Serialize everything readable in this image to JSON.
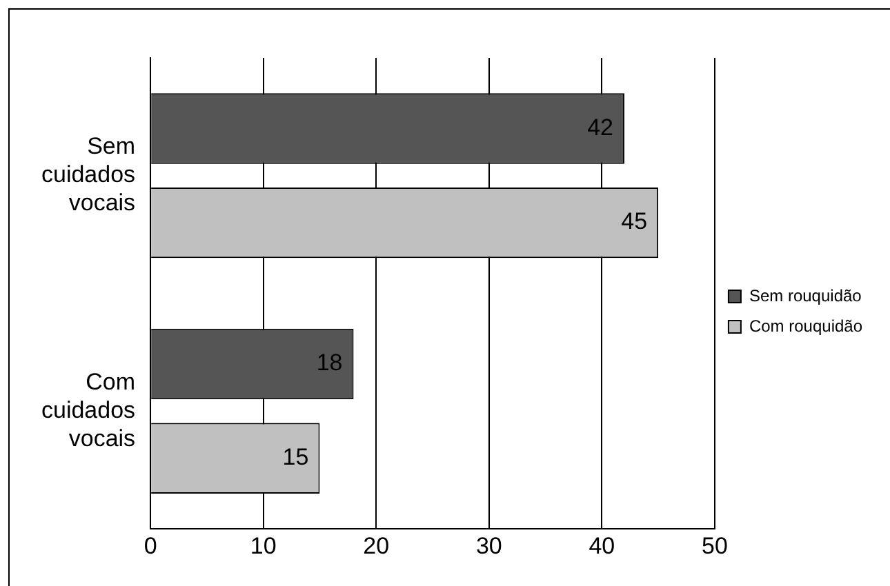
{
  "chart_data": {
    "type": "bar",
    "orientation": "horizontal",
    "categories": [
      "Sem cuidados vocais",
      "Com cuidados vocais"
    ],
    "series": [
      {
        "name": "Sem rouquidão",
        "color": "#555555",
        "values": [
          42,
          18
        ]
      },
      {
        "name": "Com rouquidão",
        "color": "#c0c0c0",
        "values": [
          45,
          15
        ]
      }
    ],
    "xlim": [
      0,
      50
    ],
    "xticks": [
      0,
      10,
      20,
      30,
      40,
      50
    ],
    "grid": "x",
    "legend": "right",
    "data_labels": true
  }
}
